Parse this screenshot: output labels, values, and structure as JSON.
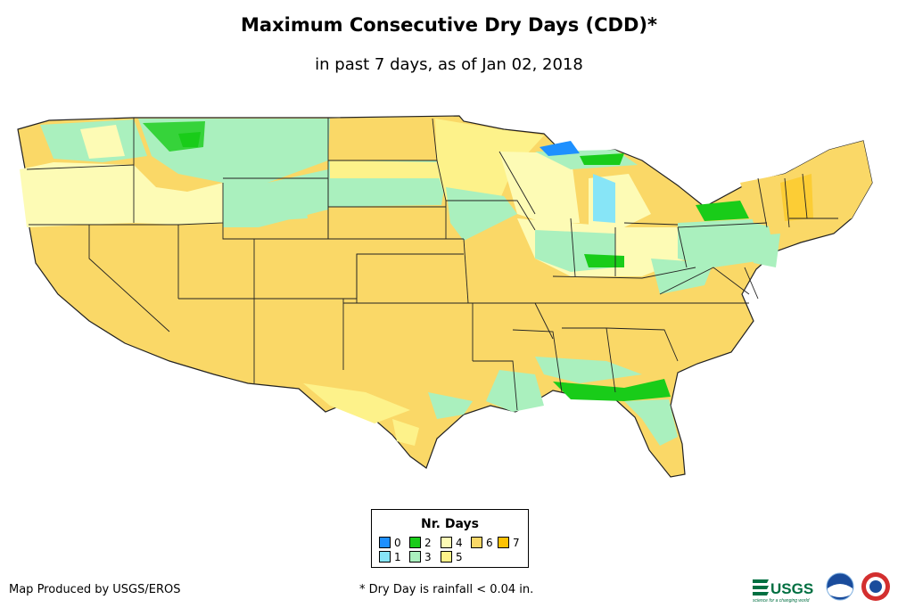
{
  "title": "Maximum Consecutive Dry Days (CDD)*",
  "subtitle": "in past 7 days, as of Jan 02, 2018",
  "legend": {
    "title": "Nr. Days",
    "items": [
      {
        "label": "0",
        "color": "#1e90ff"
      },
      {
        "label": "1",
        "color": "#87e5f7"
      },
      {
        "label": "2",
        "color": "#19cc19"
      },
      {
        "label": "3",
        "color": "#aaf0be"
      },
      {
        "label": "4",
        "color": "#fdfbb5"
      },
      {
        "label": "5",
        "color": "#fdf28a"
      },
      {
        "label": "6",
        "color": "#fad867"
      },
      {
        "label": "7",
        "color": "#fdc204"
      }
    ]
  },
  "footnote": "* Dry Day is rainfall < 0.04 in.",
  "credit": "Map Produced by USGS/EROS",
  "logos": {
    "usgs_text": "USGS",
    "usgs_tagline": "science for a changing world",
    "noaa_icon": "noaa-logo",
    "nws_icon": "nws-logo"
  }
}
